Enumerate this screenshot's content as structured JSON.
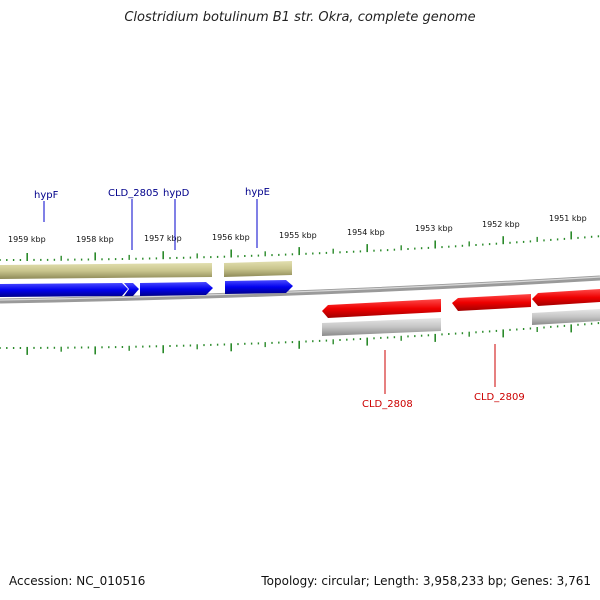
{
  "title": "Clostridium botulinum B1 str. Okra, complete genome",
  "footer": {
    "accession": "Accession: NC_010516",
    "stats": "Topology: circular; Length: 3,958,233 bp; Genes: 3,761"
  },
  "colors": {
    "forward_cds": "#0000ee",
    "reverse_cds": "#ee0000",
    "forward_gene": "#c8c48c",
    "reverse_gene": "#c4c4c4",
    "backbone": "#888888",
    "ticks": "#2a8a2a",
    "forward_label": "#00008b",
    "reverse_label": "#cc0000"
  },
  "ruler": {
    "unit": "kbp",
    "labels": [
      "1959 kbp",
      "1958 kbp",
      "1957 kbp",
      "1956 kbp",
      "1955 kbp",
      "1954 kbp",
      "1953 kbp",
      "1952 kbp",
      "1951 kbp"
    ]
  },
  "genes": {
    "forward": [
      {
        "name": "hypF"
      },
      {
        "name": "CLD_2805"
      },
      {
        "name": "hypD"
      },
      {
        "name": "hypE"
      }
    ],
    "reverse": [
      {
        "name": "CLD_2808"
      },
      {
        "name": "CLD_2809"
      }
    ]
  }
}
